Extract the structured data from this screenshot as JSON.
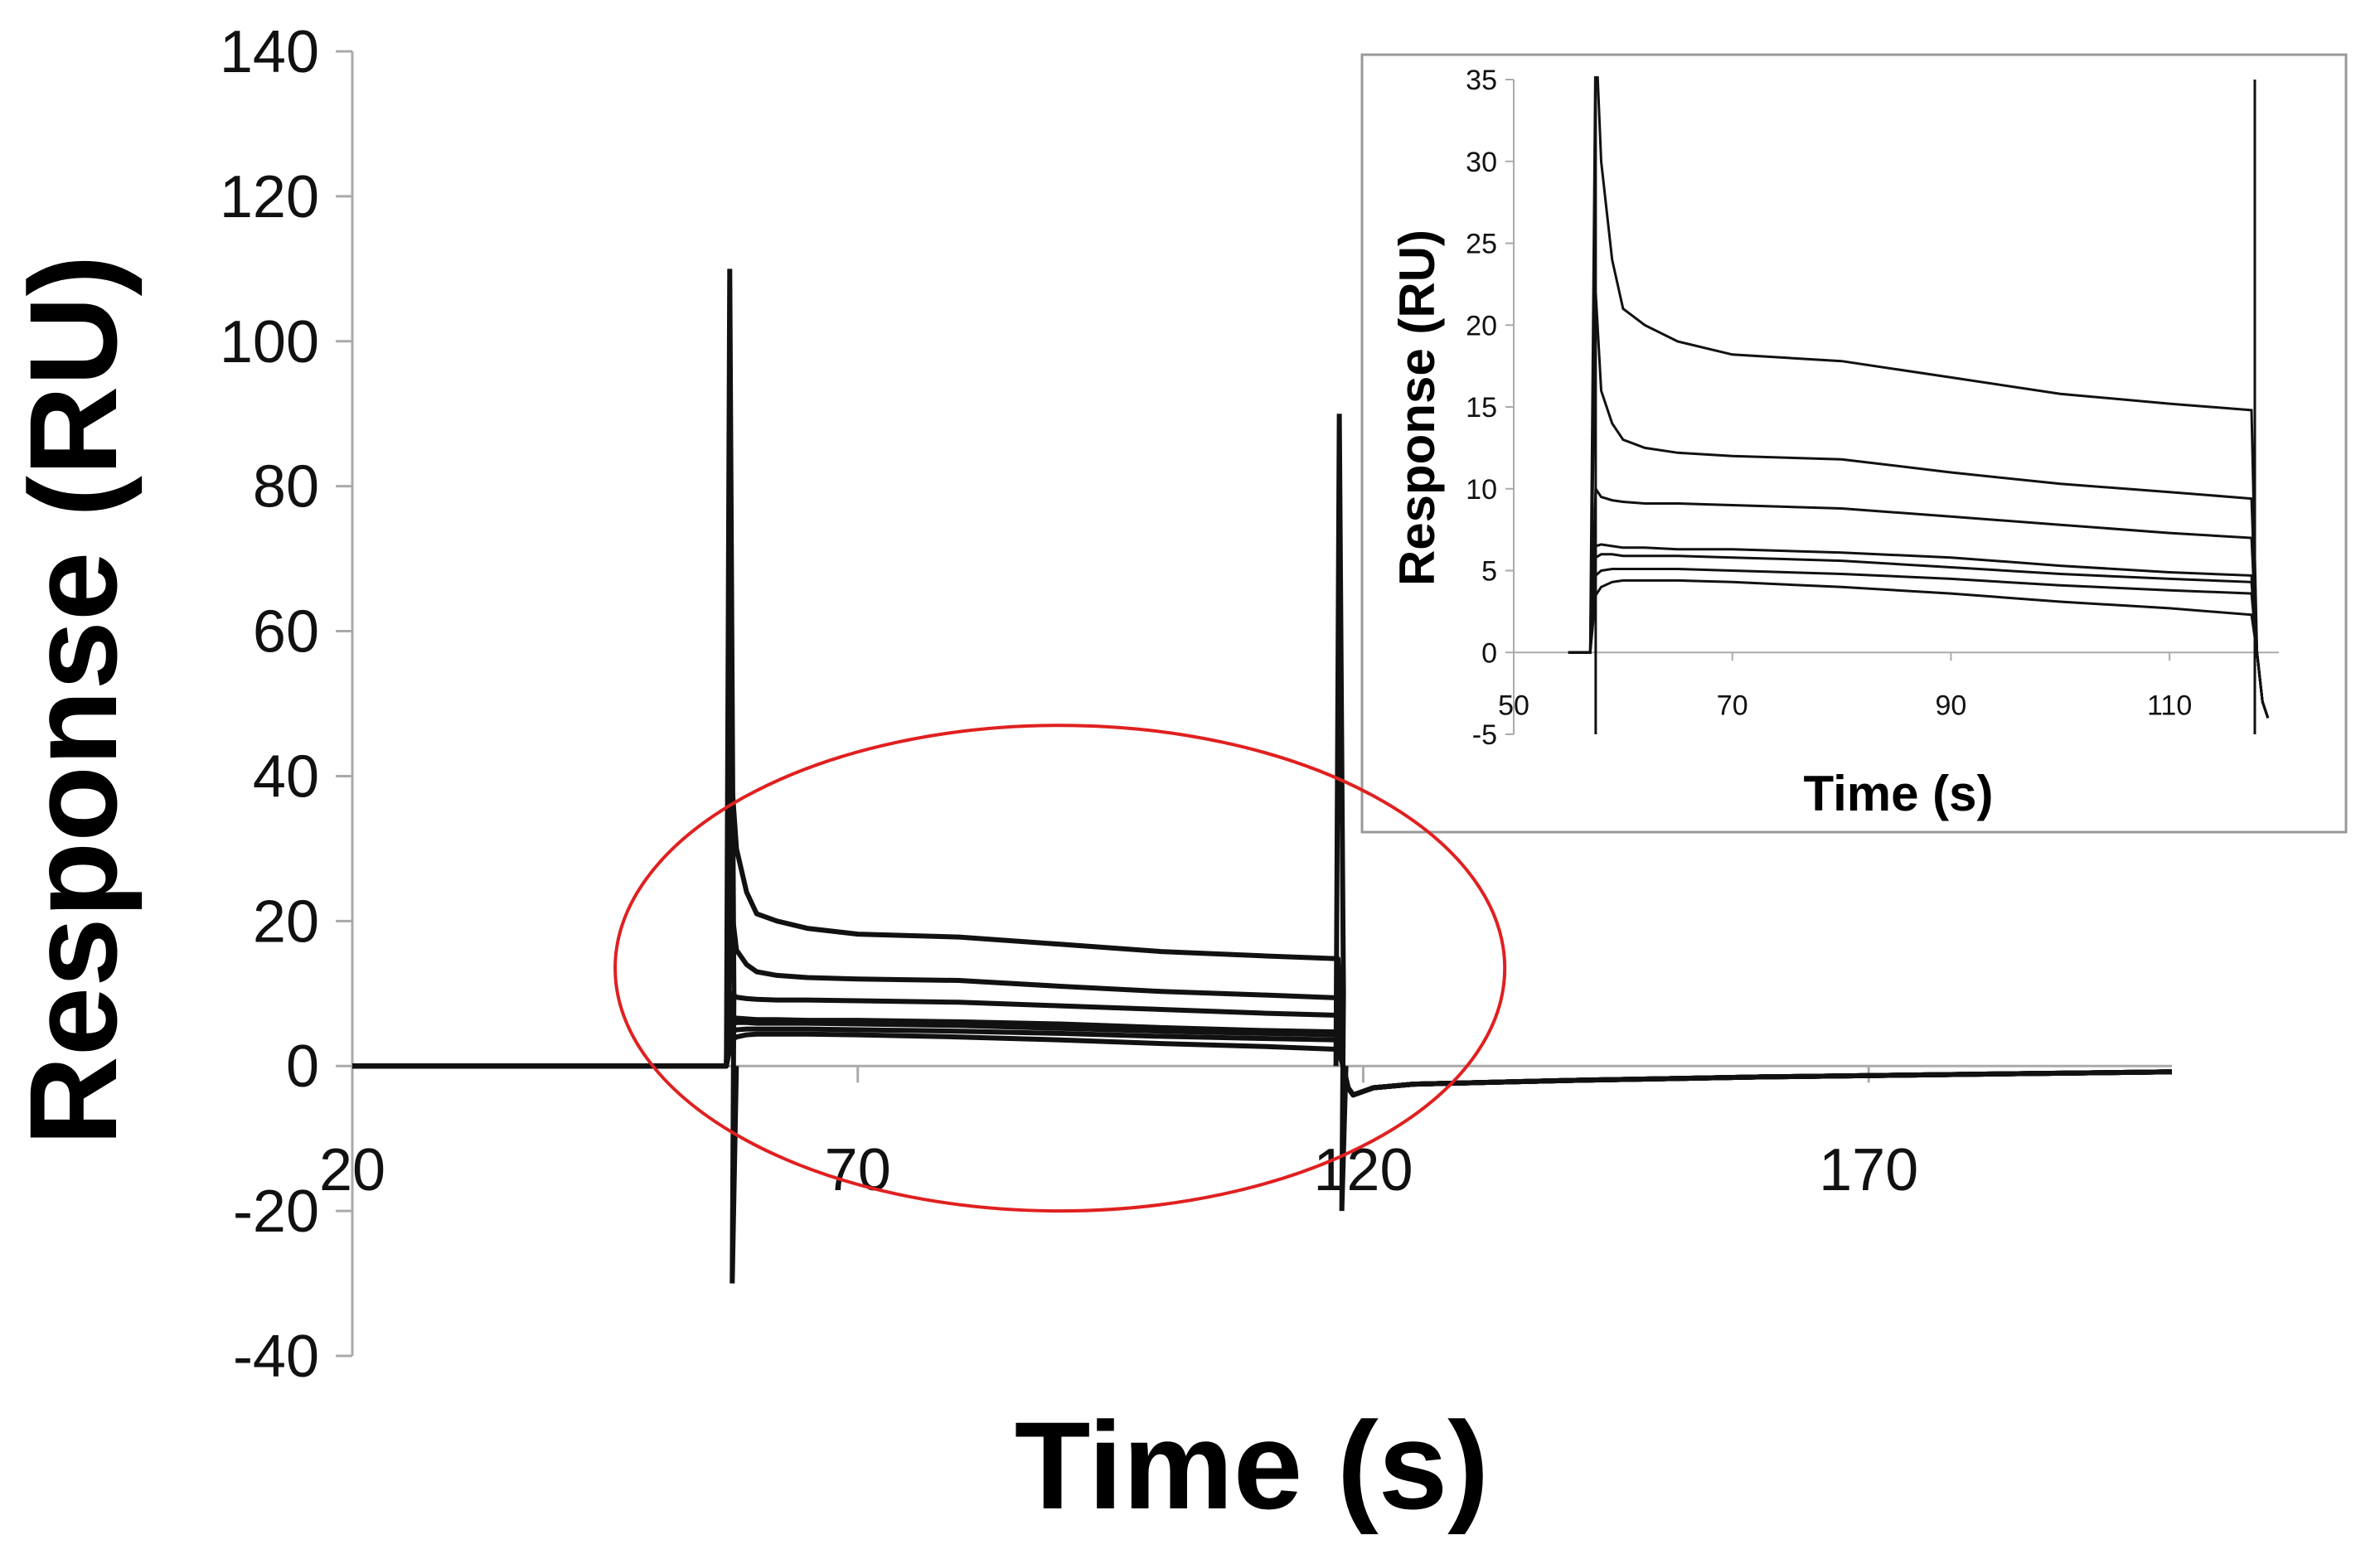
{
  "chart_data": [
    {
      "id": "main",
      "type": "line",
      "title": "",
      "xlabel": "Time (s)",
      "ylabel": "Response (RU)",
      "xlim": [
        20,
        200
      ],
      "ylim": [
        -40,
        140
      ],
      "xticks": [
        20,
        70,
        120,
        170
      ],
      "yticks": [
        -40,
        -20,
        0,
        20,
        40,
        60,
        80,
        100,
        120,
        140
      ],
      "x_tick_labels": [
        "20",
        "70",
        "120",
        "170"
      ],
      "y_tick_labels": [
        "-40",
        "-20",
        "0",
        "20",
        "40",
        "60",
        "80",
        "100",
        "120",
        "140"
      ],
      "grid": false,
      "legend": "none",
      "line_color": "#111111",
      "highlight": {
        "shape": "ellipse",
        "color": "#e02020",
        "x_range": [
          46,
          134
        ],
        "y_range": [
          -20,
          47
        ]
      },
      "injection_spike": {
        "x": 57.5,
        "max": 110,
        "min": -30
      },
      "dissociation_spike": {
        "x": 117.8,
        "max": 90,
        "min": -20
      },
      "series": [
        {
          "x": [
            20,
            55,
            57,
            57.5,
            58,
            59,
            60,
            62,
            65,
            70,
            80,
            90,
            100,
            110,
            117.5,
            118,
            118.5,
            119,
            121,
            125,
            140,
            160,
            200
          ],
          "y": [
            0,
            0,
            0,
            40,
            30,
            24,
            21,
            20,
            19,
            18.2,
            17.8,
            16.8,
            15.8,
            15.2,
            14.8,
            0,
            -3,
            -4,
            -3,
            -2.5,
            -2,
            -1.5,
            -0.8
          ]
        },
        {
          "x": [
            20,
            55,
            57,
            57.5,
            58,
            59,
            60,
            62,
            65,
            70,
            80,
            90,
            100,
            110,
            117.5,
            118,
            118.5,
            119,
            121,
            125,
            140,
            160,
            200
          ],
          "y": [
            0,
            0,
            0,
            22,
            16,
            14,
            13,
            12.5,
            12.2,
            12,
            11.8,
            11,
            10.3,
            9.8,
            9.4,
            0,
            -3,
            -4,
            -3,
            -2.5,
            -2,
            -1.5,
            -0.8
          ]
        },
        {
          "x": [
            20,
            55,
            57,
            57.5,
            58,
            59,
            60,
            62,
            65,
            70,
            80,
            90,
            100,
            110,
            117.5,
            118,
            118.5,
            119,
            121,
            125,
            140,
            160,
            200
          ],
          "y": [
            0,
            0,
            0,
            10,
            9.5,
            9.3,
            9.2,
            9.1,
            9.1,
            9.0,
            8.8,
            8.3,
            7.8,
            7.3,
            7.0,
            0,
            -3,
            -4,
            -3,
            -2.5,
            -2,
            -1.5,
            -0.8
          ]
        },
        {
          "x": [
            20,
            55,
            57,
            57.5,
            58,
            59,
            60,
            62,
            65,
            70,
            80,
            90,
            100,
            110,
            117.5,
            118,
            118.5,
            119,
            121,
            125,
            140,
            160,
            200
          ],
          "y": [
            0,
            0,
            0,
            6.5,
            6.6,
            6.5,
            6.4,
            6.4,
            6.3,
            6.3,
            6.1,
            5.8,
            5.3,
            4.9,
            4.7,
            0,
            -3,
            -4,
            -3,
            -2.5,
            -2,
            -1.5,
            -0.8
          ]
        },
        {
          "x": [
            20,
            55,
            57,
            57.5,
            58,
            59,
            60,
            62,
            65,
            70,
            80,
            90,
            100,
            110,
            117.5,
            118,
            118.5,
            119,
            121,
            125,
            140,
            160,
            200
          ],
          "y": [
            0,
            0,
            0,
            5.8,
            6.0,
            6.0,
            5.9,
            5.9,
            5.9,
            5.8,
            5.6,
            5.2,
            4.8,
            4.5,
            4.3,
            0,
            -3,
            -4,
            -3,
            -2.5,
            -2,
            -1.5,
            -0.8
          ]
        },
        {
          "x": [
            20,
            55,
            57,
            57.5,
            58,
            59,
            60,
            62,
            65,
            70,
            80,
            90,
            100,
            110,
            117.5,
            118,
            118.5,
            119,
            121,
            125,
            140,
            160,
            200
          ],
          "y": [
            0,
            0,
            0,
            4.7,
            5.0,
            5.1,
            5.1,
            5.1,
            5.1,
            5.0,
            4.8,
            4.5,
            4.1,
            3.8,
            3.6,
            0,
            -3,
            -4,
            -3,
            -2.5,
            -2,
            -1.5,
            -0.8
          ]
        },
        {
          "x": [
            20,
            55,
            57,
            57.5,
            58,
            59,
            60,
            62,
            65,
            70,
            80,
            90,
            100,
            110,
            117.5,
            118,
            118.5,
            119,
            121,
            125,
            140,
            160,
            200
          ],
          "y": [
            0,
            0,
            0,
            3.5,
            4.0,
            4.3,
            4.4,
            4.4,
            4.4,
            4.3,
            4.0,
            3.6,
            3.1,
            2.7,
            2.3,
            0,
            -3,
            -4,
            -3,
            -2.5,
            -2,
            -1.5,
            -0.8
          ]
        }
      ]
    },
    {
      "id": "inset",
      "type": "line",
      "title": "",
      "xlabel": "Time (s)",
      "ylabel": "Response (RU)",
      "xlim": [
        50,
        120
      ],
      "ylim": [
        -5,
        35
      ],
      "xticks": [
        50,
        70,
        90,
        110
      ],
      "yticks": [
        -5,
        0,
        5,
        10,
        15,
        20,
        25,
        30,
        35
      ],
      "x_tick_labels": [
        "50",
        "70",
        "90",
        "110"
      ],
      "y_tick_labels": [
        "-5",
        "0",
        "5",
        "10",
        "15",
        "20",
        "25",
        "30",
        "35"
      ],
      "grid": false,
      "legend": "none",
      "line_color": "#111111",
      "series_source": "main",
      "injection_spike": {
        "x": 57.5,
        "max": 35,
        "min": -5
      },
      "dissociation_spike": {
        "x": 117.8,
        "max": 35,
        "min": -5
      }
    }
  ]
}
